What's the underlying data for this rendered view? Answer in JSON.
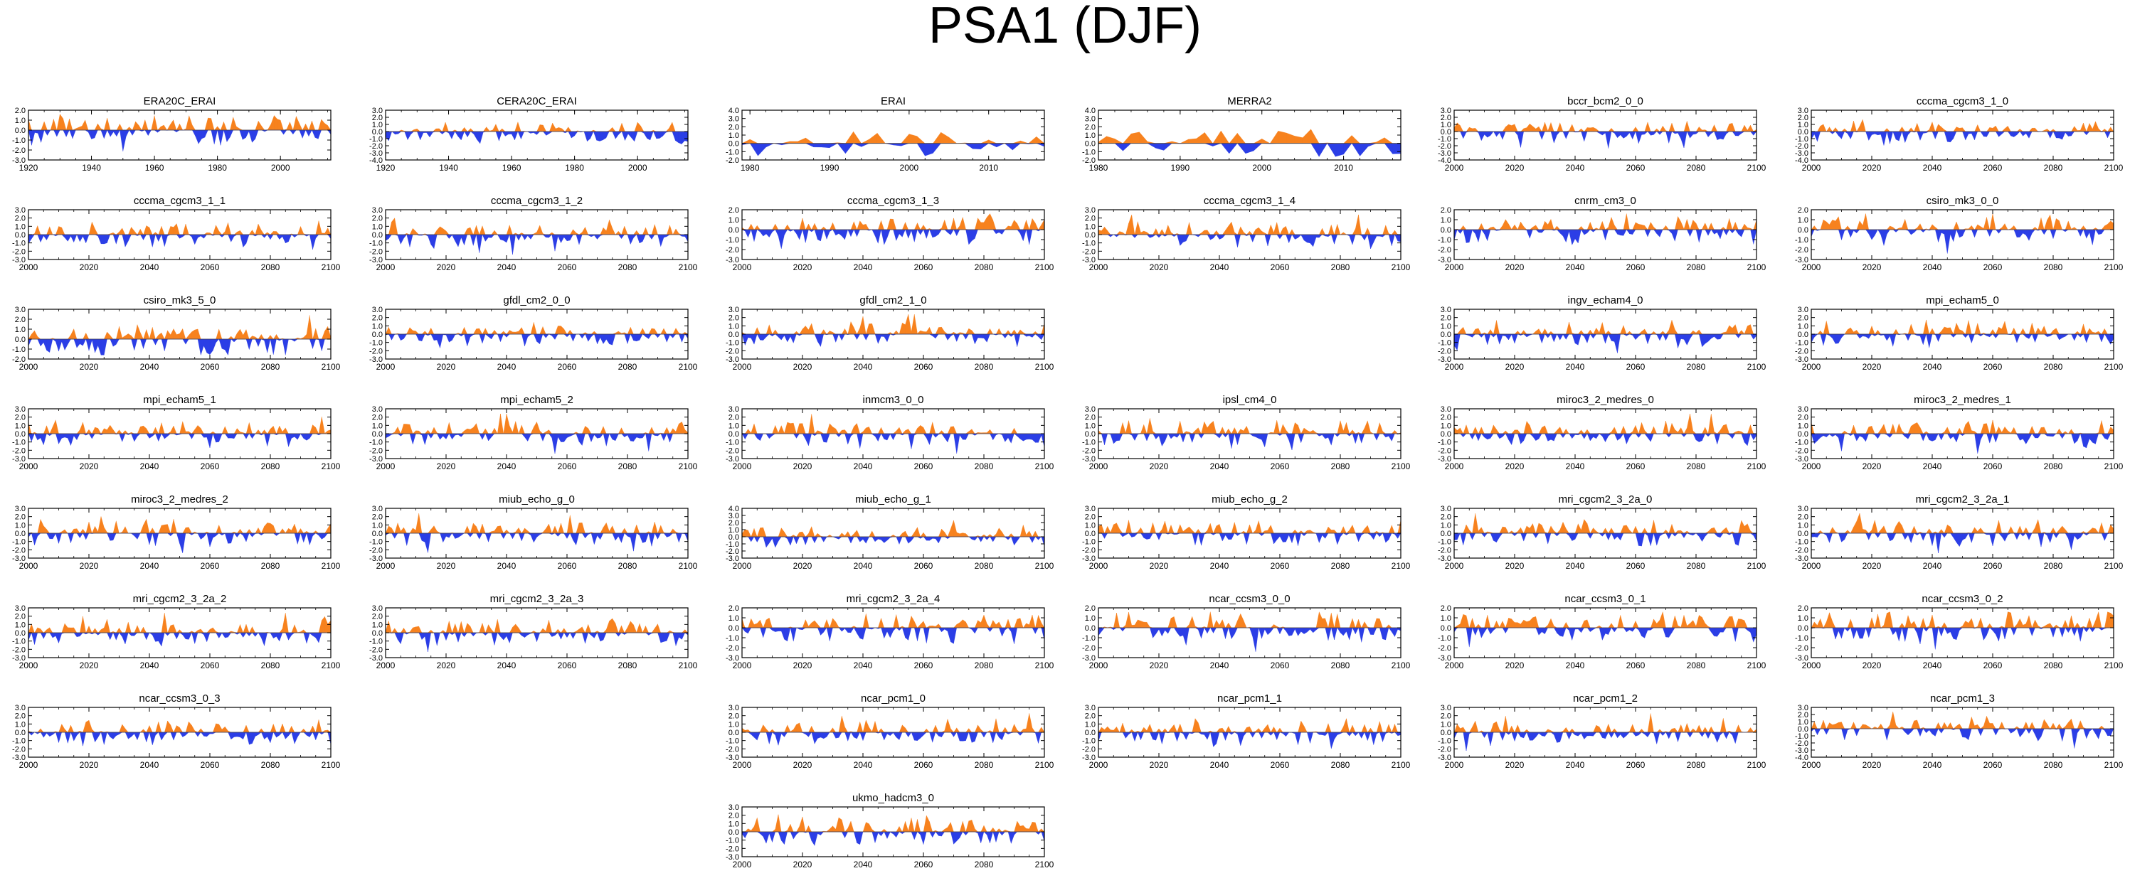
{
  "title": "PSA1 (DJF)",
  "colors": {
    "positive": "#f7821e",
    "negative": "#2b3ee6",
    "axis": "#000000"
  },
  "chart_data": [
    {
      "type": "area",
      "title": "ERA20C_ERAI",
      "xlim": [
        1920,
        2016
      ],
      "xticks": [
        1920,
        1940,
        1960,
        1980,
        2000
      ],
      "ylim": [
        -3,
        2
      ],
      "yticks": [
        "2.0",
        "1.0",
        "0.0",
        "-1.0",
        "-2.0",
        "-3.0"
      ],
      "seed": 11
    },
    {
      "type": "area",
      "title": "CERA20C_ERAI",
      "xlim": [
        1920,
        2016
      ],
      "xticks": [
        1920,
        1940,
        1960,
        1980,
        2000
      ],
      "ylim": [
        -4,
        3
      ],
      "yticks": [
        "3.0",
        "2.0",
        "1.0",
        "0.0",
        "-1.0",
        "-2.0",
        "-3.0",
        "-4.0"
      ],
      "seed": 12
    },
    {
      "type": "area",
      "title": "ERAI",
      "xlim": [
        1979,
        2017
      ],
      "xticks": [
        1980,
        1990,
        2000,
        2010
      ],
      "ylim": [
        -2,
        4
      ],
      "yticks": [
        "4.0",
        "3.0",
        "2.0",
        "1.0",
        "0.0",
        "-1.0",
        "-2.0"
      ],
      "seed": 13
    },
    {
      "type": "area",
      "title": "MERRA2",
      "xlim": [
        1980,
        2017
      ],
      "xticks": [
        1980,
        1990,
        2000,
        2010
      ],
      "ylim": [
        -2,
        4
      ],
      "yticks": [
        "4.0",
        "3.0",
        "2.0",
        "1.0",
        "0.0",
        "-1.0",
        "-2.0"
      ],
      "seed": 14
    },
    {
      "type": "area",
      "title": "bccr_bcm2_0_0",
      "xlim": [
        2000,
        2100
      ],
      "xticks": [
        2000,
        2020,
        2040,
        2060,
        2080,
        2100
      ],
      "ylim": [
        -4,
        3
      ],
      "yticks": [
        "3.0",
        "2.0",
        "1.0",
        "0.0",
        "-1.0",
        "-2.0",
        "-3.0",
        "-4.0"
      ],
      "seed": 15
    },
    {
      "type": "area",
      "title": "cccma_cgcm3_1_0",
      "xlim": [
        2000,
        2100
      ],
      "xticks": [
        2000,
        2020,
        2040,
        2060,
        2080,
        2100
      ],
      "ylim": [
        -4,
        3
      ],
      "yticks": [
        "3.0",
        "2.0",
        "1.0",
        "0.0",
        "-1.0",
        "-2.0",
        "-3.0",
        "-4.0"
      ],
      "seed": 16
    },
    {
      "type": "area",
      "title": "cccma_cgcm3_1_1",
      "xlim": [
        2000,
        2100
      ],
      "xticks": [
        2000,
        2020,
        2040,
        2060,
        2080,
        2100
      ],
      "ylim": [
        -3,
        3
      ],
      "yticks": [
        "3.0",
        "2.0",
        "1.0",
        "0.0",
        "-1.0",
        "-2.0",
        "-3.0"
      ],
      "seed": 21
    },
    {
      "type": "area",
      "title": "cccma_cgcm3_1_2",
      "xlim": [
        2000,
        2100
      ],
      "xticks": [
        2000,
        2020,
        2040,
        2060,
        2080,
        2100
      ],
      "ylim": [
        -3,
        3
      ],
      "yticks": [
        "3.0",
        "2.0",
        "1.0",
        "0.0",
        "-1.0",
        "-2.0",
        "-3.0"
      ],
      "seed": 22
    },
    {
      "type": "area",
      "title": "cccma_cgcm3_1_3",
      "xlim": [
        2000,
        2100
      ],
      "xticks": [
        2000,
        2020,
        2040,
        2060,
        2080,
        2100
      ],
      "ylim": [
        -3,
        2
      ],
      "yticks": [
        "2.0",
        "1.0",
        "0.0",
        "-1.0",
        "-2.0",
        "-3.0"
      ],
      "seed": 23
    },
    {
      "type": "area",
      "title": "cccma_cgcm3_1_4",
      "xlim": [
        2000,
        2100
      ],
      "xticks": [
        2000,
        2020,
        2040,
        2060,
        2080,
        2100
      ],
      "ylim": [
        -3,
        3
      ],
      "yticks": [
        "3.0",
        "2.0",
        "1.0",
        "0.0",
        "-1.0",
        "-2.0",
        "-3.0"
      ],
      "seed": 24
    },
    {
      "type": "area",
      "title": "cnrm_cm3_0",
      "xlim": [
        2000,
        2100
      ],
      "xticks": [
        2000,
        2020,
        2040,
        2060,
        2080,
        2100
      ],
      "ylim": [
        -3,
        2
      ],
      "yticks": [
        "2.0",
        "1.0",
        "0.0",
        "-1.0",
        "-2.0",
        "-3.0"
      ],
      "seed": 25
    },
    {
      "type": "area",
      "title": "csiro_mk3_0_0",
      "xlim": [
        2000,
        2100
      ],
      "xticks": [
        2000,
        2020,
        2040,
        2060,
        2080,
        2100
      ],
      "ylim": [
        -3,
        2
      ],
      "yticks": [
        "2.0",
        "1.0",
        "0.0",
        "-1.0",
        "-2.0",
        "-3.0"
      ],
      "seed": 26
    },
    {
      "type": "area",
      "title": "csiro_mk3_5_0",
      "xlim": [
        2000,
        2100
      ],
      "xticks": [
        2000,
        2020,
        2040,
        2060,
        2080,
        2100
      ],
      "ylim": [
        -2,
        3
      ],
      "yticks": [
        "3.0",
        "2.0",
        "1.0",
        "0.0",
        "-1.0",
        "-2.0"
      ],
      "seed": 31
    },
    {
      "type": "area",
      "title": "gfdl_cm2_0_0",
      "xlim": [
        2000,
        2100
      ],
      "xticks": [
        2000,
        2020,
        2040,
        2060,
        2080,
        2100
      ],
      "ylim": [
        -3,
        3
      ],
      "yticks": [
        "3.0",
        "2.0",
        "1.0",
        "0.0",
        "-1.0",
        "-2.0",
        "-3.0"
      ],
      "seed": 32
    },
    {
      "type": "area",
      "title": "gfdl_cm2_1_0",
      "xlim": [
        2000,
        2100
      ],
      "xticks": [
        2000,
        2020,
        2040,
        2060,
        2080,
        2100
      ],
      "ylim": [
        -3,
        3
      ],
      "yticks": [
        "3.0",
        "2.0",
        "1.0",
        "0.0",
        "-1.0",
        "-2.0",
        "-3.0"
      ],
      "seed": 33
    },
    {
      "type": "area",
      "title": "ingv_echam4_0",
      "xlim": [
        2000,
        2100
      ],
      "xticks": [
        2000,
        2020,
        2040,
        2060,
        2080,
        2100
      ],
      "ylim": [
        -3,
        3
      ],
      "yticks": [
        "3.0",
        "2.0",
        "1.0",
        "0.0",
        "-1.0",
        "-2.0",
        "-3.0"
      ],
      "seed": 34
    },
    {
      "type": "area",
      "title": "mpi_echam5_0",
      "xlim": [
        2000,
        2100
      ],
      "xticks": [
        2000,
        2020,
        2040,
        2060,
        2080,
        2100
      ],
      "ylim": [
        -3,
        3
      ],
      "yticks": [
        "3.0",
        "2.0",
        "1.0",
        "0.0",
        "-1.0",
        "-2.0",
        "-3.0"
      ],
      "seed": 35
    },
    {
      "type": "area",
      "title": "mpi_echam5_1",
      "xlim": [
        2000,
        2100
      ],
      "xticks": [
        2000,
        2020,
        2040,
        2060,
        2080,
        2100
      ],
      "ylim": [
        -3,
        3
      ],
      "yticks": [
        "3.0",
        "2.0",
        "1.0",
        "0.0",
        "-1.0",
        "-2.0",
        "-3.0"
      ],
      "seed": 41
    },
    {
      "type": "area",
      "title": "mpi_echam5_2",
      "xlim": [
        2000,
        2100
      ],
      "xticks": [
        2000,
        2020,
        2040,
        2060,
        2080,
        2100
      ],
      "ylim": [
        -3,
        3
      ],
      "yticks": [
        "3.0",
        "2.0",
        "1.0",
        "0.0",
        "-1.0",
        "-2.0",
        "-3.0"
      ],
      "seed": 42
    },
    {
      "type": "area",
      "title": "inmcm3_0_0",
      "xlim": [
        2000,
        2100
      ],
      "xticks": [
        2000,
        2020,
        2040,
        2060,
        2080,
        2100
      ],
      "ylim": [
        -3,
        3
      ],
      "yticks": [
        "3.0",
        "2.0",
        "1.0",
        "0.0",
        "-1.0",
        "-2.0",
        "-3.0"
      ],
      "seed": 43
    },
    {
      "type": "area",
      "title": "ipsl_cm4_0",
      "xlim": [
        2000,
        2100
      ],
      "xticks": [
        2000,
        2020,
        2040,
        2060,
        2080,
        2100
      ],
      "ylim": [
        -3,
        3
      ],
      "yticks": [
        "3.0",
        "2.0",
        "1.0",
        "0.0",
        "-1.0",
        "-2.0",
        "-3.0"
      ],
      "seed": 44
    },
    {
      "type": "area",
      "title": "miroc3_2_medres_0",
      "xlim": [
        2000,
        2100
      ],
      "xticks": [
        2000,
        2020,
        2040,
        2060,
        2080,
        2100
      ],
      "ylim": [
        -3,
        3
      ],
      "yticks": [
        "3.0",
        "2.0",
        "1.0",
        "0.0",
        "-1.0",
        "-2.0",
        "-3.0"
      ],
      "seed": 45
    },
    {
      "type": "area",
      "title": "miroc3_2_medres_1",
      "xlim": [
        2000,
        2100
      ],
      "xticks": [
        2000,
        2020,
        2040,
        2060,
        2080,
        2100
      ],
      "ylim": [
        -3,
        3
      ],
      "yticks": [
        "3.0",
        "2.0",
        "1.0",
        "0.0",
        "-1.0",
        "-2.0",
        "-3.0"
      ],
      "seed": 46
    },
    {
      "type": "area",
      "title": "miroc3_2_medres_2",
      "xlim": [
        2000,
        2100
      ],
      "xticks": [
        2000,
        2020,
        2040,
        2060,
        2080,
        2100
      ],
      "ylim": [
        -3,
        3
      ],
      "yticks": [
        "3.0",
        "2.0",
        "1.0",
        "0.0",
        "-1.0",
        "-2.0",
        "-3.0"
      ],
      "seed": 51
    },
    {
      "type": "area",
      "title": "miub_echo_g_0",
      "xlim": [
        2000,
        2100
      ],
      "xticks": [
        2000,
        2020,
        2040,
        2060,
        2080,
        2100
      ],
      "ylim": [
        -3,
        3
      ],
      "yticks": [
        "3.0",
        "2.0",
        "1.0",
        "0.0",
        "-1.0",
        "-2.0",
        "-3.0"
      ],
      "seed": 52
    },
    {
      "type": "area",
      "title": "miub_echo_g_1",
      "xlim": [
        2000,
        2100
      ],
      "xticks": [
        2000,
        2020,
        2040,
        2060,
        2080,
        2100
      ],
      "ylim": [
        -3,
        4
      ],
      "yticks": [
        "4.0",
        "3.0",
        "2.0",
        "1.0",
        "0.0",
        "-1.0",
        "-2.0",
        "-3.0"
      ],
      "seed": 53
    },
    {
      "type": "area",
      "title": "miub_echo_g_2",
      "xlim": [
        2000,
        2100
      ],
      "xticks": [
        2000,
        2020,
        2040,
        2060,
        2080,
        2100
      ],
      "ylim": [
        -3,
        3
      ],
      "yticks": [
        "3.0",
        "2.0",
        "1.0",
        "0.0",
        "-1.0",
        "-2.0",
        "-3.0"
      ],
      "seed": 54
    },
    {
      "type": "area",
      "title": "mri_cgcm2_3_2a_0",
      "xlim": [
        2000,
        2100
      ],
      "xticks": [
        2000,
        2020,
        2040,
        2060,
        2080,
        2100
      ],
      "ylim": [
        -3,
        3
      ],
      "yticks": [
        "3.0",
        "2.0",
        "1.0",
        "0.0",
        "-1.0",
        "-2.0",
        "-3.0"
      ],
      "seed": 55
    },
    {
      "type": "area",
      "title": "mri_cgcm2_3_2a_1",
      "xlim": [
        2000,
        2100
      ],
      "xticks": [
        2000,
        2020,
        2040,
        2060,
        2080,
        2100
      ],
      "ylim": [
        -3,
        3
      ],
      "yticks": [
        "3.0",
        "2.0",
        "1.0",
        "0.0",
        "-1.0",
        "-2.0",
        "-3.0"
      ],
      "seed": 56
    },
    {
      "type": "area",
      "title": "mri_cgcm2_3_2a_2",
      "xlim": [
        2000,
        2100
      ],
      "xticks": [
        2000,
        2020,
        2040,
        2060,
        2080,
        2100
      ],
      "ylim": [
        -3,
        3
      ],
      "yticks": [
        "3.0",
        "2.0",
        "1.0",
        "0.0",
        "-1.0",
        "-2.0",
        "-3.0"
      ],
      "seed": 61
    },
    {
      "type": "area",
      "title": "mri_cgcm2_3_2a_3",
      "xlim": [
        2000,
        2100
      ],
      "xticks": [
        2000,
        2020,
        2040,
        2060,
        2080,
        2100
      ],
      "ylim": [
        -3,
        3
      ],
      "yticks": [
        "3.0",
        "2.0",
        "1.0",
        "0.0",
        "-1.0",
        "-2.0",
        "-3.0"
      ],
      "seed": 62
    },
    {
      "type": "area",
      "title": "mri_cgcm2_3_2a_4",
      "xlim": [
        2000,
        2100
      ],
      "xticks": [
        2000,
        2020,
        2040,
        2060,
        2080,
        2100
      ],
      "ylim": [
        -3,
        2
      ],
      "yticks": [
        "2.0",
        "1.0",
        "0.0",
        "-1.0",
        "-2.0",
        "-3.0"
      ],
      "seed": 63
    },
    {
      "type": "area",
      "title": "ncar_ccsm3_0_0",
      "xlim": [
        2000,
        2100
      ],
      "xticks": [
        2000,
        2020,
        2040,
        2060,
        2080,
        2100
      ],
      "ylim": [
        -3,
        2
      ],
      "yticks": [
        "2.0",
        "1.0",
        "0.0",
        "-1.0",
        "-2.0",
        "-3.0"
      ],
      "seed": 64
    },
    {
      "type": "area",
      "title": "ncar_ccsm3_0_1",
      "xlim": [
        2000,
        2100
      ],
      "xticks": [
        2000,
        2020,
        2040,
        2060,
        2080,
        2100
      ],
      "ylim": [
        -3,
        2
      ],
      "yticks": [
        "2.0",
        "1.0",
        "0.0",
        "-1.0",
        "-2.0",
        "-3.0"
      ],
      "seed": 65
    },
    {
      "type": "area",
      "title": "ncar_ccsm3_0_2",
      "xlim": [
        2000,
        2100
      ],
      "xticks": [
        2000,
        2020,
        2040,
        2060,
        2080,
        2100
      ],
      "ylim": [
        -3,
        2
      ],
      "yticks": [
        "2.0",
        "1.0",
        "0.0",
        "-1.0",
        "-2.0",
        "-3.0"
      ],
      "seed": 66
    },
    {
      "type": "area",
      "title": "ncar_ccsm3_0_3",
      "xlim": [
        2000,
        2100
      ],
      "xticks": [
        2000,
        2020,
        2040,
        2060,
        2080,
        2100
      ],
      "ylim": [
        -3,
        3
      ],
      "yticks": [
        "3.0",
        "2.0",
        "1.0",
        "0.0",
        "-1.0",
        "-2.0",
        "-3.0"
      ],
      "seed": 71
    },
    {
      "type": "area",
      "title": "ncar_pcm1_0",
      "xlim": [
        2000,
        2100
      ],
      "xticks": [
        2000,
        2020,
        2040,
        2060,
        2080,
        2100
      ],
      "ylim": [
        -3,
        3
      ],
      "yticks": [
        "3.0",
        "2.0",
        "1.0",
        "0.0",
        "-1.0",
        "-2.0",
        "-3.0"
      ],
      "seed": 72
    },
    {
      "type": "area",
      "title": "ncar_pcm1_1",
      "xlim": [
        2000,
        2100
      ],
      "xticks": [
        2000,
        2020,
        2040,
        2060,
        2080,
        2100
      ],
      "ylim": [
        -3,
        3
      ],
      "yticks": [
        "3.0",
        "2.0",
        "1.0",
        "0.0",
        "-1.0",
        "-2.0",
        "-3.0"
      ],
      "seed": 73
    },
    {
      "type": "area",
      "title": "ncar_pcm1_2",
      "xlim": [
        2000,
        2100
      ],
      "xticks": [
        2000,
        2020,
        2040,
        2060,
        2080,
        2100
      ],
      "ylim": [
        -3,
        3
      ],
      "yticks": [
        "3.0",
        "2.0",
        "1.0",
        "0.0",
        "-1.0",
        "-2.0",
        "-3.0"
      ],
      "seed": 74
    },
    {
      "type": "area",
      "title": "ncar_pcm1_3",
      "xlim": [
        2000,
        2100
      ],
      "xticks": [
        2000,
        2020,
        2040,
        2060,
        2080,
        2100
      ],
      "ylim": [
        -4,
        3
      ],
      "yticks": [
        "3.0",
        "2.0",
        "1.0",
        "0.0",
        "-1.0",
        "-2.0",
        "-3.0",
        "-4.0"
      ],
      "seed": 75
    },
    {
      "type": "area",
      "title": "ukmo_hadcm3_0",
      "xlim": [
        2000,
        2100
      ],
      "xticks": [
        2000,
        2020,
        2040,
        2060,
        2080,
        2100
      ],
      "ylim": [
        -3,
        3
      ],
      "yticks": [
        "3.0",
        "2.0",
        "1.0",
        "0.0",
        "-1.0",
        "-2.0",
        "-3.0"
      ],
      "seed": 81
    }
  ]
}
